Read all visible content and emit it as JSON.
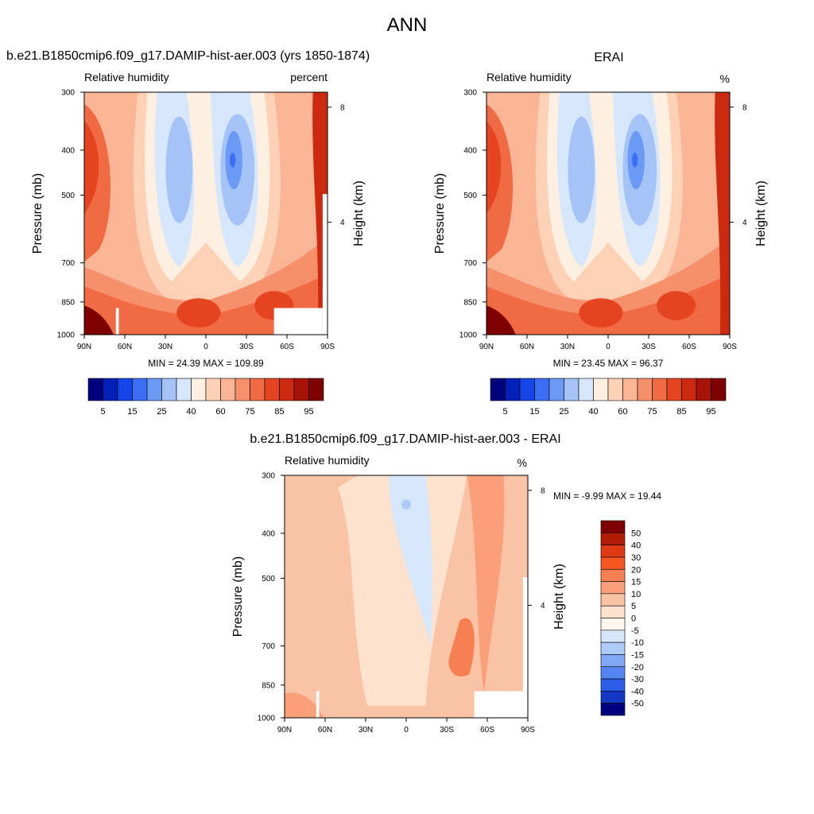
{
  "figure": {
    "title": "ANN",
    "panels": [
      {
        "id": "p1",
        "case_title": "b.e21.B1850cmip6.f09_g17.DAMIP-hist-aer.003 (yrs 1850-1874)",
        "left_title": "Relative humidity",
        "right_title": "percent",
        "stats": "MIN =  24.39  MAX = 109.89"
      },
      {
        "id": "p2",
        "case_title": "ERAI",
        "left_title": "Relative humidity",
        "right_title": "%",
        "stats": "MIN =  23.45  MAX =  96.37"
      },
      {
        "id": "p3",
        "case_title": "b.e21.B1850cmip6.f09_g17.DAMIP-hist-aer.003 - ERAI",
        "left_title": "Relative humidity",
        "right_title": "%",
        "stats": "MIN =  -9.99  MAX =  19.44"
      }
    ],
    "axes": {
      "ylabel": "Pressure (mb)",
      "y2label": "Height (km)",
      "xticks": [
        "90N",
        "60N",
        "30N",
        "0",
        "30S",
        "60S",
        "90S"
      ],
      "yticks": [
        "300",
        "400",
        "500",
        "700",
        "850",
        "1000"
      ],
      "y2ticks": [
        "8",
        "4"
      ]
    },
    "colorbar_main": {
      "labels": [
        "5",
        "15",
        "25",
        "40",
        "60",
        "75",
        "85",
        "95"
      ],
      "colors": [
        "#00007f",
        "#0020b8",
        "#1746e8",
        "#3b6ef5",
        "#6b9af5",
        "#a6c3f8",
        "#d6e6fb",
        "#fdf0e2",
        "#fdd1b6",
        "#fab596",
        "#f68f6b",
        "#f06a44",
        "#e54420",
        "#cb2a10",
        "#a61407",
        "#7f0000"
      ]
    },
    "colorbar_diff": {
      "labels": [
        "50",
        "40",
        "30",
        "20",
        "15",
        "10",
        "5",
        "0",
        "-5",
        "-10",
        "-15",
        "-20",
        "-30",
        "-40",
        "-50"
      ],
      "colors": [
        "#7f0000",
        "#b21c05",
        "#df3a14",
        "#f6561f",
        "#f77f52",
        "#f9a07a",
        "#fbc3a6",
        "#fde2cf",
        "#fff6ef",
        "#d6e6fb",
        "#aecaf9",
        "#80a8f6",
        "#5485f2",
        "#2d5ee9",
        "#1538c4",
        "#00007f"
      ]
    }
  },
  "chart_data": [
    {
      "type": "heatmap",
      "title": "b.e21.B1850cmip6.f09_g17.DAMIP-hist-aer.003 (yrs 1850-1874)",
      "variable": "Relative humidity",
      "units": "percent",
      "x": [
        "90N",
        "60N",
        "30N",
        "0",
        "30S",
        "60S",
        "90S"
      ],
      "y": [
        300,
        400,
        500,
        700,
        850,
        1000
      ],
      "xlabel": "",
      "ylabel": "Pressure (mb)",
      "y2label": "Height (km)",
      "min": 24.39,
      "max": 109.89
    },
    {
      "type": "heatmap",
      "title": "ERAI",
      "variable": "Relative humidity",
      "units": "%",
      "x": [
        "90N",
        "60N",
        "30N",
        "0",
        "30S",
        "60S",
        "90S"
      ],
      "y": [
        300,
        400,
        500,
        700,
        850,
        1000
      ],
      "xlabel": "",
      "ylabel": "Pressure (mb)",
      "y2label": "Height (km)",
      "min": 23.45,
      "max": 96.37
    },
    {
      "type": "heatmap",
      "title": "b.e21.B1850cmip6.f09_g17.DAMIP-hist-aer.003 - ERAI",
      "variable": "Relative humidity",
      "units": "%",
      "x": [
        "90N",
        "60N",
        "30N",
        "0",
        "30S",
        "60S",
        "90S"
      ],
      "y": [
        300,
        400,
        500,
        700,
        850,
        1000
      ],
      "xlabel": "",
      "ylabel": "Pressure (mb)",
      "y2label": "Height (km)",
      "min": -9.99,
      "max": 19.44
    }
  ]
}
